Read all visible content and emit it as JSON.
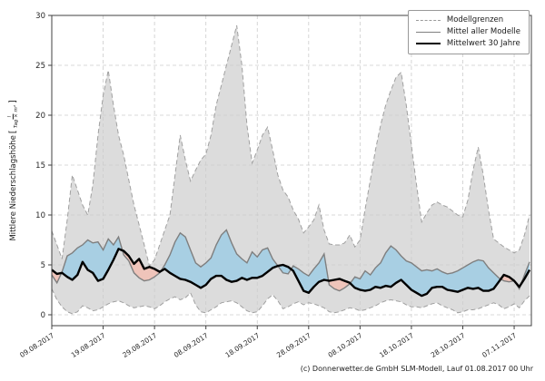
{
  "figure": {
    "caption": "(c) Donnerwetter.de GmbH SLM-Modell, Lauf 01.08.2017 00 Uhr",
    "y_axis": {
      "title": "Mittlere Niederschlagshöhe",
      "unit_numerator": "l",
      "unit_denominator": "Tag × m²",
      "bracket_open": "[",
      "bracket_close": "]"
    },
    "legend": [
      {
        "label": "Modellgrenzen",
        "style": "dashed-gray"
      },
      {
        "label": "Mittel aller Modelle",
        "style": "solid-gray"
      },
      {
        "label": "Mittelwert 30 Jahre",
        "style": "solid-black-thick"
      }
    ]
  },
  "chart_data": {
    "type": "line",
    "title": "",
    "xlabel": "",
    "ylabel": "Mittlere Niederschlagshöhe [l/(Tag × m²)]",
    "grid": true,
    "legend_position": "upper right",
    "ylim": [
      -1.1,
      30
    ],
    "y_ticks": [
      0,
      5,
      10,
      15,
      20,
      25,
      30
    ],
    "x_tick_labels": [
      "09.08.2017",
      "19.08.2017",
      "29.08.2017",
      "08.09.2017",
      "18.09.2017",
      "28.09.2017",
      "08.10.2017",
      "18.10.2017",
      "28.10.2017",
      "07.11.2017"
    ],
    "x_tick_days": [
      0,
      10,
      20,
      30,
      40,
      50,
      60,
      70,
      80,
      90
    ],
    "x_days_span": 93.35,
    "colors": {
      "band_fill": "#dcdcdc",
      "band_edge": "#a0a0a0",
      "grid": "#cccccc",
      "model_mean": "#7f7f7f",
      "mean_30yr": "#000000",
      "above_normal_fill": "#a8cfe3",
      "below_normal_fill": "#efc4ba",
      "spine": "#404040",
      "tick_text": "#262626"
    },
    "series": [
      {
        "name": "Modellgrenzen (oberes Band)",
        "values": [
          8.4,
          7.0,
          5.6,
          9.5,
          14.0,
          12.5,
          11.0,
          10.0,
          13.0,
          18.0,
          22.0,
          24.5,
          21.0,
          18.0,
          16.0,
          13.5,
          11.0,
          9.0,
          7.0,
          4.9,
          5.5,
          7.0,
          8.5,
          10.0,
          14.0,
          18.0,
          15.5,
          13.4,
          14.5,
          15.5,
          16.1,
          18.0,
          21.0,
          23.0,
          25.0,
          27.0,
          29.0,
          25.0,
          19.0,
          15.2,
          16.5,
          18.0,
          18.8,
          16.5,
          14.0,
          12.5,
          11.8,
          10.5,
          9.6,
          8.2,
          8.8,
          9.5,
          11.0,
          8.5,
          7.1,
          7.0,
          7.0,
          7.2,
          8.0,
          6.8,
          7.5,
          10.6,
          13.5,
          16.5,
          19.0,
          21.0,
          22.5,
          23.8,
          24.3,
          21.0,
          17.0,
          13.0,
          9.3,
          10.2,
          11.0,
          11.3,
          11.0,
          10.8,
          10.4,
          10.0,
          9.8,
          11.5,
          14.5,
          16.8,
          14.0,
          10.5,
          7.6,
          7.2,
          6.8,
          6.5,
          6.2,
          6.5,
          8.0,
          10.0
        ]
      },
      {
        "name": "Modellgrenzen (unteres Band)",
        "values": [
          2.6,
          1.5,
          0.8,
          0.3,
          0.1,
          0.3,
          0.9,
          0.7,
          0.4,
          0.5,
          0.8,
          1.1,
          1.3,
          1.4,
          1.2,
          0.9,
          0.7,
          0.8,
          0.9,
          0.8,
          0.6,
          0.9,
          1.3,
          1.6,
          1.8,
          1.5,
          1.7,
          2.2,
          1.0,
          0.3,
          0.2,
          0.5,
          0.8,
          1.2,
          1.3,
          1.4,
          1.2,
          0.8,
          0.4,
          0.2,
          0.3,
          0.9,
          1.6,
          2.0,
          1.4,
          0.6,
          0.8,
          1.1,
          1.3,
          1.0,
          1.2,
          1.1,
          0.9,
          0.7,
          0.3,
          0.2,
          0.3,
          0.5,
          0.7,
          0.6,
          0.4,
          0.5,
          0.7,
          0.9,
          1.2,
          1.4,
          1.5,
          1.4,
          1.3,
          1.0,
          0.8,
          0.8,
          0.7,
          0.9,
          1.1,
          1.2,
          0.9,
          0.7,
          0.5,
          0.2,
          0.3,
          0.5,
          0.5,
          0.6,
          0.8,
          1.0,
          1.2,
          1.0,
          0.6,
          0.8,
          1.1,
          0.7,
          1.4,
          1.9
        ]
      },
      {
        "name": "Mittel aller Modelle",
        "values": [
          4.0,
          3.2,
          4.3,
          5.9,
          6.2,
          6.7,
          7.0,
          7.5,
          7.2,
          7.3,
          6.5,
          7.6,
          7.0,
          7.8,
          6.0,
          5.4,
          4.2,
          3.7,
          3.4,
          3.5,
          3.8,
          4.2,
          5.0,
          6.0,
          7.3,
          8.2,
          7.8,
          6.5,
          5.2,
          4.8,
          5.2,
          5.7,
          7.0,
          8.0,
          8.5,
          7.2,
          6.1,
          5.6,
          5.2,
          6.3,
          5.8,
          6.5,
          6.7,
          5.6,
          4.9,
          4.2,
          4.1,
          4.9,
          4.6,
          4.2,
          3.9,
          4.6,
          5.2,
          6.1,
          3.0,
          2.6,
          2.4,
          2.7,
          3.1,
          3.8,
          3.6,
          4.4,
          4.0,
          4.7,
          5.2,
          6.2,
          6.9,
          6.5,
          5.9,
          5.4,
          5.2,
          4.8,
          4.4,
          4.5,
          4.4,
          4.6,
          4.3,
          4.1,
          4.2,
          4.4,
          4.7,
          5.0,
          5.3,
          5.5,
          5.4,
          4.7,
          4.2,
          3.7,
          3.4,
          3.3,
          3.4,
          2.6,
          4.0,
          5.3
        ]
      },
      {
        "name": "Mittelwert 30 Jahre",
        "values": [
          4.5,
          4.1,
          4.2,
          3.8,
          3.5,
          4.0,
          5.3,
          4.5,
          4.2,
          3.4,
          3.6,
          4.5,
          5.5,
          6.6,
          6.4,
          5.9,
          5.1,
          5.6,
          4.6,
          4.8,
          4.6,
          4.3,
          4.6,
          4.2,
          3.9,
          3.6,
          3.5,
          3.3,
          3.0,
          2.7,
          3.0,
          3.6,
          3.9,
          3.9,
          3.5,
          3.3,
          3.4,
          3.7,
          3.5,
          3.7,
          3.7,
          3.9,
          4.3,
          4.7,
          4.9,
          5.0,
          4.8,
          4.4,
          3.4,
          2.4,
          2.2,
          2.8,
          3.3,
          3.5,
          3.4,
          3.5,
          3.6,
          3.4,
          3.2,
          2.7,
          2.5,
          2.4,
          2.5,
          2.8,
          2.7,
          2.9,
          2.8,
          3.2,
          3.5,
          3.0,
          2.5,
          2.2,
          1.9,
          2.1,
          2.7,
          2.8,
          2.8,
          2.5,
          2.4,
          2.3,
          2.5,
          2.7,
          2.6,
          2.7,
          2.4,
          2.4,
          2.6,
          3.3,
          4.0,
          3.8,
          3.4,
          2.8,
          3.6,
          4.5
        ]
      }
    ]
  }
}
